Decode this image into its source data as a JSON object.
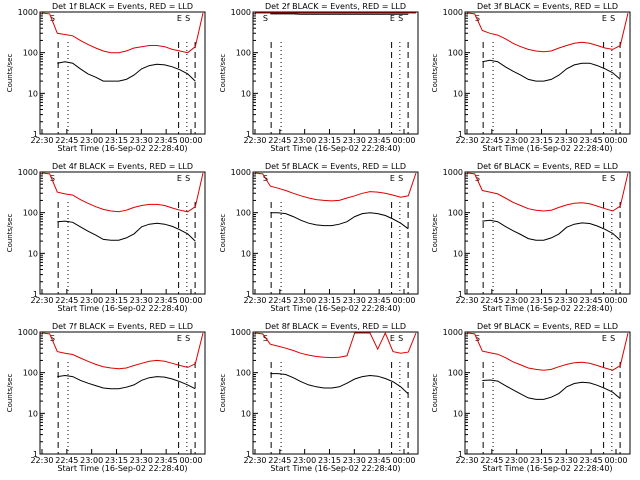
{
  "chart_data": [
    {
      "type": "line",
      "title": "Det 1f BLACK = Events, RED = LLD",
      "xlabel": "Start Time (16-Sep-02 22:28:40)",
      "ylabel": "Counts/sec",
      "yscale": "log",
      "ylim": [
        1,
        1000
      ],
      "x_ticks": [
        "22:30",
        "22:45",
        "23:00",
        "23:15",
        "23:30",
        "23:45",
        "00:00"
      ],
      "y_ticks": [
        "1",
        "10",
        "100",
        "1000"
      ],
      "markers": [
        "S",
        "E",
        "S"
      ],
      "series": [
        {
          "name": "RED = LLD",
          "color": "#e00000",
          "values": [
            1000,
            900,
            300,
            280,
            260,
            200,
            160,
            130,
            110,
            100,
            100,
            110,
            130,
            140,
            150,
            150,
            140,
            120,
            110,
            100,
            140,
            1000
          ]
        },
        {
          "name": "BLACK = Events",
          "color": "#000000",
          "values": [
            null,
            null,
            55,
            60,
            55,
            40,
            30,
            25,
            20,
            20,
            20,
            22,
            28,
            40,
            48,
            52,
            50,
            45,
            38,
            30,
            20,
            null
          ]
        }
      ]
    },
    {
      "type": "line",
      "title": "Det 2f BLACK = Events, RED = LLD",
      "xlabel": "Start Time (16-Sep-02 22:28:40)",
      "ylabel": "Counts/sec",
      "yscale": "log",
      "ylim": [
        1,
        1000
      ],
      "x_ticks": [
        "22:30",
        "22:45",
        "23:00",
        "23:15",
        "23:30",
        "23:45",
        "00:00"
      ],
      "y_ticks": [
        "1",
        "10",
        "100",
        "1000"
      ],
      "markers": [
        "S",
        "E",
        "S"
      ],
      "series": [
        {
          "name": "RED = LLD",
          "color": "#e00000",
          "values": [
            1000,
            1000,
            1050,
            1000,
            1000,
            950,
            950,
            950,
            950,
            950,
            950,
            950,
            950,
            950,
            950,
            950,
            1000,
            1000,
            1000,
            1000,
            1000,
            1000
          ]
        },
        {
          "name": "BLACK = Events",
          "color": "#000000",
          "values": [
            null,
            null,
            900,
            900,
            900,
            900,
            880,
            880,
            880,
            880,
            880,
            880,
            880,
            880,
            880,
            880,
            880,
            880,
            880,
            880,
            880,
            null
          ]
        }
      ]
    },
    {
      "type": "line",
      "title": "Det 3f BLACK = Events, RED = LLD",
      "xlabel": "Start Time (16-Sep-02 22:28:40)",
      "ylabel": "Counts/sec",
      "yscale": "log",
      "ylim": [
        1,
        1000
      ],
      "x_ticks": [
        "22:30",
        "22:45",
        "23:00",
        "23:15",
        "23:30",
        "23:45",
        "00:00"
      ],
      "y_ticks": [
        "1",
        "10",
        "100",
        "1000"
      ],
      "markers": [
        "S",
        "E",
        "S"
      ],
      "series": [
        {
          "name": "RED = LLD",
          "color": "#e00000",
          "values": [
            1000,
            900,
            350,
            300,
            270,
            220,
            170,
            140,
            120,
            110,
            105,
            110,
            130,
            150,
            170,
            180,
            170,
            150,
            130,
            120,
            150,
            1000
          ]
        },
        {
          "name": "BLACK = Events",
          "color": "#000000",
          "values": [
            null,
            null,
            60,
            65,
            60,
            45,
            35,
            28,
            22,
            20,
            20,
            22,
            28,
            40,
            50,
            55,
            55,
            48,
            40,
            32,
            22,
            null
          ]
        }
      ]
    },
    {
      "type": "line",
      "title": "Det 4f BLACK = Events, RED = LLD",
      "xlabel": "Start Time (16-Sep-02 22:28:40)",
      "ylabel": "Counts/sec",
      "yscale": "log",
      "ylim": [
        1,
        1000
      ],
      "x_ticks": [
        "22:30",
        "22:45",
        "23:00",
        "23:15",
        "23:30",
        "23:45",
        "00:00"
      ],
      "y_ticks": [
        "1",
        "10",
        "100",
        "1000"
      ],
      "markers": [
        "S",
        "E",
        "S"
      ],
      "series": [
        {
          "name": "RED = LLD",
          "color": "#e00000",
          "values": [
            1000,
            900,
            320,
            290,
            270,
            210,
            170,
            140,
            120,
            110,
            105,
            115,
            135,
            150,
            160,
            160,
            150,
            130,
            115,
            105,
            140,
            1000
          ]
        },
        {
          "name": "BLACK = Events",
          "color": "#000000",
          "values": [
            null,
            null,
            60,
            62,
            58,
            45,
            35,
            28,
            22,
            21,
            21,
            24,
            30,
            45,
            52,
            55,
            52,
            46,
            38,
            30,
            20,
            null
          ]
        }
      ]
    },
    {
      "type": "line",
      "title": "Det 5f BLACK = Events, RED = LLD",
      "xlabel": "Start Time (16-Sep-02 22:28:40)",
      "ylabel": "Counts/sec",
      "yscale": "log",
      "ylim": [
        1,
        1000
      ],
      "x_ticks": [
        "22:30",
        "22:45",
        "23:00",
        "23:15",
        "23:30",
        "23:45",
        "00:00"
      ],
      "y_ticks": [
        "1",
        "10",
        "100",
        "1000"
      ],
      "markers": [
        "S",
        "E",
        "S"
      ],
      "series": [
        {
          "name": "RED = LLD",
          "color": "#e00000",
          "values": [
            1000,
            900,
            450,
            400,
            350,
            300,
            260,
            230,
            210,
            200,
            195,
            200,
            230,
            260,
            300,
            330,
            320,
            300,
            270,
            240,
            260,
            1000
          ]
        },
        {
          "name": "BLACK = Events",
          "color": "#000000",
          "values": [
            null,
            null,
            100,
            100,
            95,
            80,
            65,
            55,
            50,
            48,
            48,
            52,
            60,
            80,
            95,
            100,
            95,
            85,
            70,
            55,
            40,
            null
          ]
        }
      ]
    },
    {
      "type": "line",
      "title": "Det 6f BLACK = Events, RED = LLD",
      "xlabel": "Start Time (16-Sep-02 22:28:40)",
      "ylabel": "Counts/sec",
      "yscale": "log",
      "ylim": [
        1,
        1000
      ],
      "x_ticks": [
        "22:30",
        "22:45",
        "23:00",
        "23:15",
        "23:30",
        "23:45",
        "00:00"
      ],
      "y_ticks": [
        "1",
        "10",
        "100",
        "1000"
      ],
      "markers": [
        "S",
        "E",
        "S"
      ],
      "series": [
        {
          "name": "RED = LLD",
          "color": "#e00000",
          "values": [
            1000,
            900,
            350,
            320,
            290,
            230,
            180,
            150,
            125,
            115,
            110,
            115,
            135,
            155,
            170,
            175,
            165,
            145,
            125,
            110,
            145,
            1000
          ]
        },
        {
          "name": "BLACK = Events",
          "color": "#000000",
          "values": [
            null,
            null,
            62,
            65,
            60,
            46,
            36,
            29,
            23,
            21,
            21,
            24,
            30,
            44,
            52,
            56,
            54,
            47,
            39,
            31,
            21,
            null
          ]
        }
      ]
    },
    {
      "type": "line",
      "title": "Det 7f BLACK = Events, RED = LLD",
      "xlabel": "Start Time (16-Sep-02 22:28:40)",
      "ylabel": "Counts/sec",
      "yscale": "log",
      "ylim": [
        1,
        1000
      ],
      "x_ticks": [
        "22:30",
        "22:45",
        "23:00",
        "23:15",
        "23:30",
        "23:45",
        "00:00"
      ],
      "y_ticks": [
        "1",
        "10",
        "100",
        "1000"
      ],
      "markers": [
        "S",
        "E",
        "S"
      ],
      "series": [
        {
          "name": "RED = LLD",
          "color": "#e00000",
          "values": [
            1000,
            900,
            330,
            300,
            280,
            230,
            190,
            160,
            140,
            130,
            125,
            130,
            150,
            170,
            190,
            200,
            190,
            170,
            150,
            135,
            165,
            1000
          ]
        },
        {
          "name": "BLACK = Events",
          "color": "#000000",
          "values": [
            null,
            null,
            80,
            85,
            80,
            65,
            55,
            48,
            42,
            40,
            40,
            44,
            50,
            65,
            75,
            80,
            78,
            70,
            60,
            50,
            40,
            null
          ]
        }
      ]
    },
    {
      "type": "line",
      "title": "Det 8f BLACK = Events, RED = LLD",
      "xlabel": "Start Time (16-Sep-02 22:28:40)",
      "ylabel": "Counts/sec",
      "yscale": "log",
      "ylim": [
        1,
        1000
      ],
      "x_ticks": [
        "22:30",
        "22:45",
        "23:00",
        "23:15",
        "23:30",
        "23:45",
        "00:00"
      ],
      "y_ticks": [
        "1",
        "10",
        "100",
        "1000"
      ],
      "markers": [
        "S",
        "E",
        "S"
      ],
      "series": [
        {
          "name": "RED = LLD",
          "color": "#e00000",
          "values": [
            1000,
            900,
            500,
            450,
            400,
            350,
            300,
            270,
            250,
            240,
            235,
            240,
            260,
            1000,
            1000,
            1000,
            380,
            1000,
            330,
            300,
            320,
            1000
          ]
        },
        {
          "name": "BLACK = Events",
          "color": "#000000",
          "values": [
            null,
            null,
            95,
            95,
            90,
            75,
            60,
            50,
            45,
            42,
            42,
            45,
            55,
            70,
            80,
            85,
            82,
            72,
            60,
            45,
            30,
            null
          ]
        }
      ]
    },
    {
      "type": "line",
      "title": "Det 9f BLACK = Events, RED = LLD",
      "xlabel": "Start Time (16-Sep-02 22:28:40)",
      "ylabel": "Counts/sec",
      "yscale": "log",
      "ylim": [
        1,
        1000
      ],
      "x_ticks": [
        "22:30",
        "22:45",
        "23:00",
        "23:15",
        "23:30",
        "23:45",
        "00:00"
      ],
      "y_ticks": [
        "1",
        "10",
        "100",
        "1000"
      ],
      "markers": [
        "S",
        "E",
        "S"
      ],
      "series": [
        {
          "name": "RED = LLD",
          "color": "#e00000",
          "values": [
            1000,
            900,
            340,
            310,
            285,
            235,
            185,
            155,
            130,
            120,
            115,
            120,
            140,
            160,
            175,
            180,
            170,
            150,
            130,
            115,
            150,
            1000
          ]
        },
        {
          "name": "BLACK = Events",
          "color": "#000000",
          "values": [
            null,
            null,
            64,
            66,
            62,
            48,
            38,
            30,
            24,
            22,
            22,
            25,
            31,
            45,
            54,
            58,
            56,
            49,
            41,
            33,
            23,
            null
          ]
        }
      ]
    }
  ]
}
